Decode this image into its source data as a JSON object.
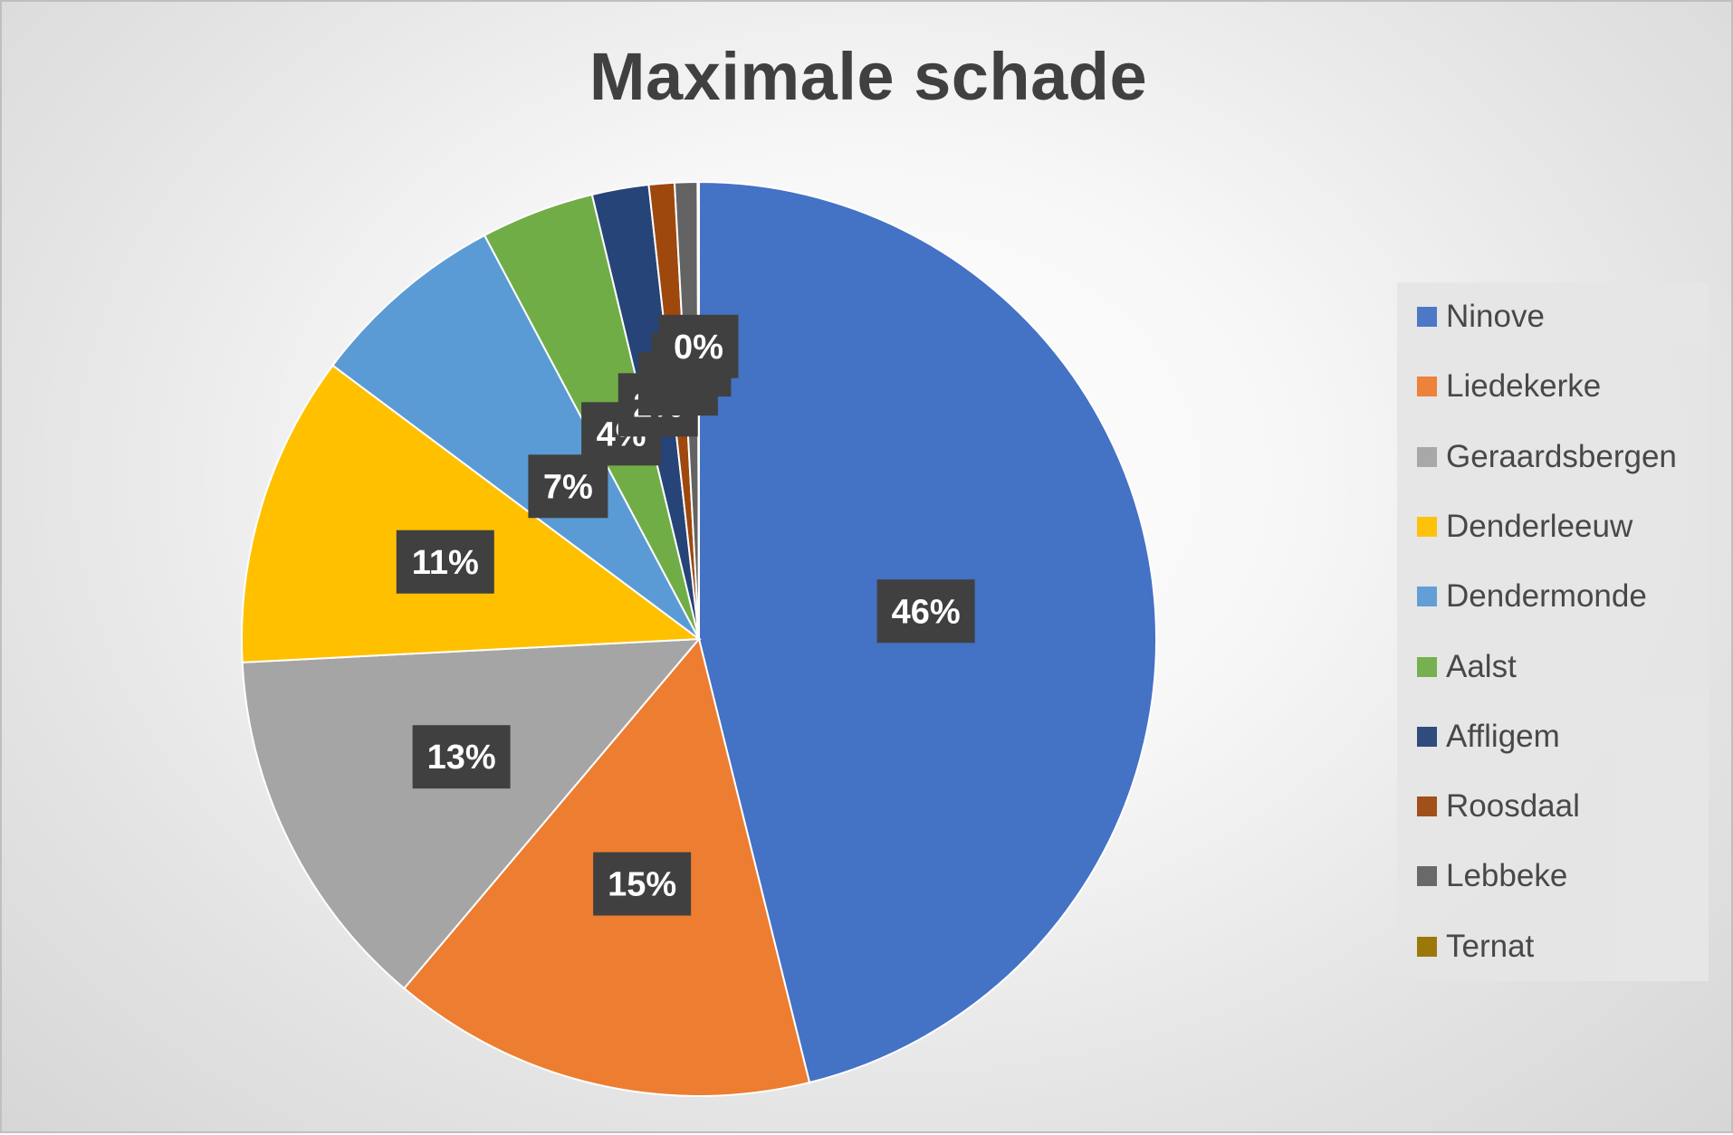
{
  "chart_data": {
    "type": "pie",
    "title": "Maximale schade",
    "categories": [
      "Ninove",
      "Liedekerke",
      "Geraardsbergen",
      "Denderleeuw",
      "Dendermonde",
      "Aalst",
      "Affligem",
      "Roosdaal",
      "Lebbeke",
      "Ternat"
    ],
    "values": [
      46,
      15,
      13,
      11,
      7,
      4,
      2,
      0.9,
      0.8,
      0.05
    ],
    "data_labels": [
      "46%",
      "15%",
      "13%",
      "11%",
      "7%",
      "4%",
      "2%",
      "1%",
      "1%",
      "0%"
    ],
    "colors": [
      "#4472C4",
      "#ED7D31",
      "#A5A5A5",
      "#FFC000",
      "#5B9BD5",
      "#70AD47",
      "#264478",
      "#9E480E",
      "#636363",
      "#997300"
    ],
    "legend_position": "right"
  }
}
